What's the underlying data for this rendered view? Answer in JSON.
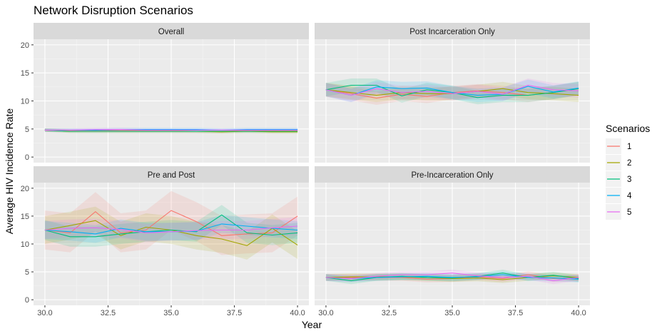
{
  "chart_data": {
    "type": "line",
    "title": "Network Disruption Scenarios",
    "xlabel": "Year",
    "ylabel": "Average HIV Incidence Rate",
    "xlim": [
      30,
      40
    ],
    "ylim": [
      0,
      20
    ],
    "x_ticks": [
      "30.0",
      "32.5",
      "35.0",
      "37.5",
      "40.0"
    ],
    "y_ticks": [
      "0",
      "5",
      "10",
      "15",
      "20"
    ],
    "grid": true,
    "legend": {
      "title": "Scenarios",
      "position": "right",
      "entries": [
        "1",
        "2",
        "3",
        "4",
        "5"
      ]
    },
    "colors": {
      "1": "#F8766D",
      "2": "#A3A500",
      "3": "#00BF7D",
      "4": "#00B0F6",
      "5": "#E76BF3"
    },
    "x": [
      30,
      31,
      32,
      33,
      34,
      35,
      36,
      37,
      38,
      39,
      40
    ],
    "panels": [
      {
        "name": "Overall",
        "series": [
          {
            "name": "1",
            "values": [
              4.8,
              4.7,
              4.7,
              4.7,
              4.7,
              4.7,
              4.6,
              4.6,
              4.7,
              4.7,
              4.7
            ],
            "band": 0.3
          },
          {
            "name": "2",
            "values": [
              4.8,
              4.6,
              4.6,
              4.6,
              4.6,
              4.6,
              4.6,
              4.5,
              4.6,
              4.5,
              4.5
            ],
            "band": 0.3
          },
          {
            "name": "3",
            "values": [
              4.8,
              4.6,
              4.6,
              4.6,
              4.6,
              4.6,
              4.6,
              4.6,
              4.6,
              4.6,
              4.6
            ],
            "band": 0.3
          },
          {
            "name": "4",
            "values": [
              4.8,
              4.8,
              4.8,
              4.9,
              4.9,
              4.9,
              4.9,
              4.8,
              4.9,
              4.9,
              4.9
            ],
            "band": 0.3
          },
          {
            "name": "5",
            "values": [
              4.8,
              4.8,
              4.9,
              4.9,
              4.8,
              4.8,
              4.8,
              4.8,
              4.8,
              4.8,
              4.8
            ],
            "band": 0.3
          }
        ]
      },
      {
        "name": "Post Incarceration Only",
        "series": [
          {
            "name": "1",
            "values": [
              12.0,
              11.3,
              10.5,
              11.2,
              10.8,
              11.5,
              11.8,
              11.5,
              11.0,
              11.5,
              12.2
            ],
            "band": 1.2
          },
          {
            "name": "2",
            "values": [
              12.0,
              11.5,
              11.0,
              11.5,
              11.3,
              11.3,
              11.7,
              12.2,
              11.5,
              11.3,
              11.0
            ],
            "band": 1.2
          },
          {
            "name": "3",
            "values": [
              12.0,
              12.8,
              12.8,
              10.9,
              12.0,
              11.5,
              10.6,
              11.0,
              11.0,
              11.5,
              12.2
            ],
            "band": 1.2
          },
          {
            "name": "4",
            "values": [
              12.0,
              11.0,
              12.5,
              12.2,
              12.3,
              11.5,
              11.0,
              11.2,
              12.6,
              11.6,
              12.3
            ],
            "band": 1.2
          },
          {
            "name": "5",
            "values": [
              12.0,
              11.0,
              12.2,
              11.5,
              11.7,
              11.3,
              11.7,
              11.2,
              12.8,
              12.0,
              11.8
            ],
            "band": 1.2
          }
        ]
      },
      {
        "name": "Pre and Post",
        "series": [
          {
            "name": "1",
            "values": [
              12.5,
              12.0,
              15.8,
              12.0,
              12.5,
              16.0,
              14.0,
              11.5,
              11.8,
              12.0,
              15.0
            ],
            "band": 3.5
          },
          {
            "name": "2",
            "values": [
              12.5,
              13.3,
              14.2,
              11.5,
              13.0,
              12.5,
              11.5,
              10.9,
              9.7,
              12.8,
              9.8
            ],
            "band": 2.5
          },
          {
            "name": "3",
            "values": [
              12.5,
              11.3,
              11.3,
              11.8,
              12.2,
              12.5,
              12.2,
              15.2,
              12.0,
              11.6,
              12.0
            ],
            "band": 1.8
          },
          {
            "name": "4",
            "values": [
              12.5,
              12.2,
              11.8,
              12.8,
              12.2,
              12.2,
              12.3,
              13.6,
              13.2,
              12.8,
              12.5
            ],
            "band": 1.6
          },
          {
            "name": "5",
            "values": [
              12.5,
              12.8,
              12.9,
              12.6,
              12.0,
              12.2,
              12.4,
              12.5,
              12.5,
              12.9,
              13.2
            ],
            "band": 1.6
          }
        ]
      },
      {
        "name": "Pre-Incarceration Only",
        "series": [
          {
            "name": "1",
            "values": [
              4.0,
              4.0,
              4.0,
              4.0,
              3.7,
              3.8,
              4.1,
              3.8,
              4.5,
              3.8,
              3.9
            ],
            "band": 0.6
          },
          {
            "name": "2",
            "values": [
              4.0,
              4.1,
              4.1,
              4.1,
              4.0,
              3.8,
              3.9,
              3.6,
              4.0,
              4.3,
              4.0
            ],
            "band": 0.6
          },
          {
            "name": "3",
            "values": [
              4.0,
              3.4,
              4.0,
              4.2,
              4.0,
              3.9,
              4.2,
              4.8,
              4.0,
              4.4,
              3.8
            ],
            "band": 0.6
          },
          {
            "name": "4",
            "values": [
              4.0,
              3.8,
              4.0,
              4.1,
              4.2,
              4.0,
              4.1,
              4.5,
              4.0,
              3.9,
              3.7
            ],
            "band": 0.6
          },
          {
            "name": "5",
            "values": [
              4.0,
              3.8,
              4.2,
              4.5,
              4.5,
              4.8,
              4.3,
              4.0,
              4.2,
              3.4,
              4.0
            ],
            "band": 0.6
          }
        ]
      }
    ]
  }
}
